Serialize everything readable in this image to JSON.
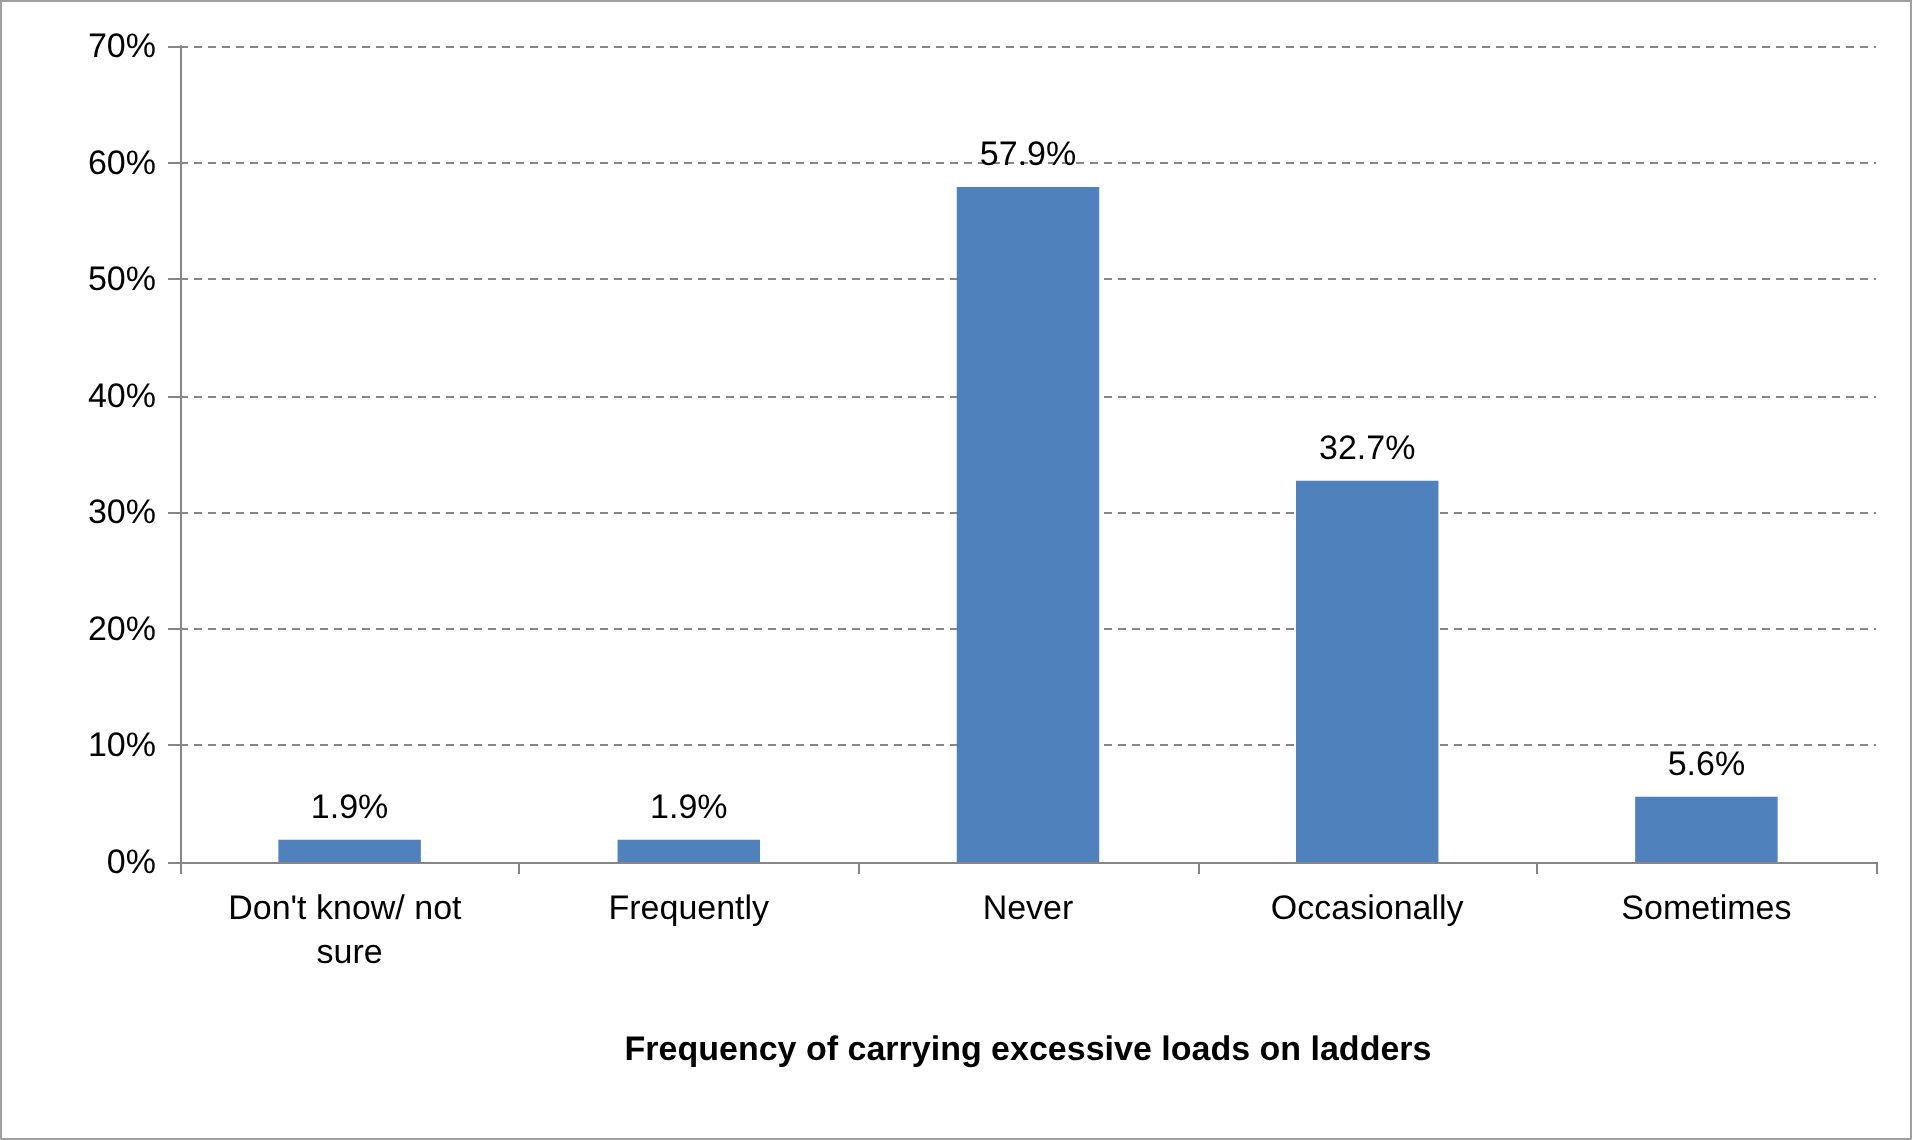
{
  "chart_data": {
    "type": "bar",
    "xlabel": "Frequency of carrying excessive loads on ladders",
    "categories": [
      "Don't know/ not sure",
      "Frequently",
      "Never",
      "Occasionally",
      "Sometimes"
    ],
    "values": [
      1.9,
      1.9,
      57.9,
      32.7,
      5.6
    ],
    "color": "#4f81bd",
    "value_labels": [
      "1.9%",
      "1.9%",
      "57.9%",
      "32.7%",
      "5.6%"
    ],
    "ylim": [
      0,
      70
    ],
    "yticks": [
      {
        "value": 0,
        "label": "0%"
      },
      {
        "value": 10,
        "label": "10%"
      },
      {
        "value": 20,
        "label": "20%"
      },
      {
        "value": 30,
        "label": "30%"
      },
      {
        "value": 40,
        "label": "40%"
      },
      {
        "value": 50,
        "label": "50%"
      },
      {
        "value": 60,
        "label": "60%"
      },
      {
        "value": 70,
        "label": "70%"
      }
    ],
    "grid": "y"
  }
}
